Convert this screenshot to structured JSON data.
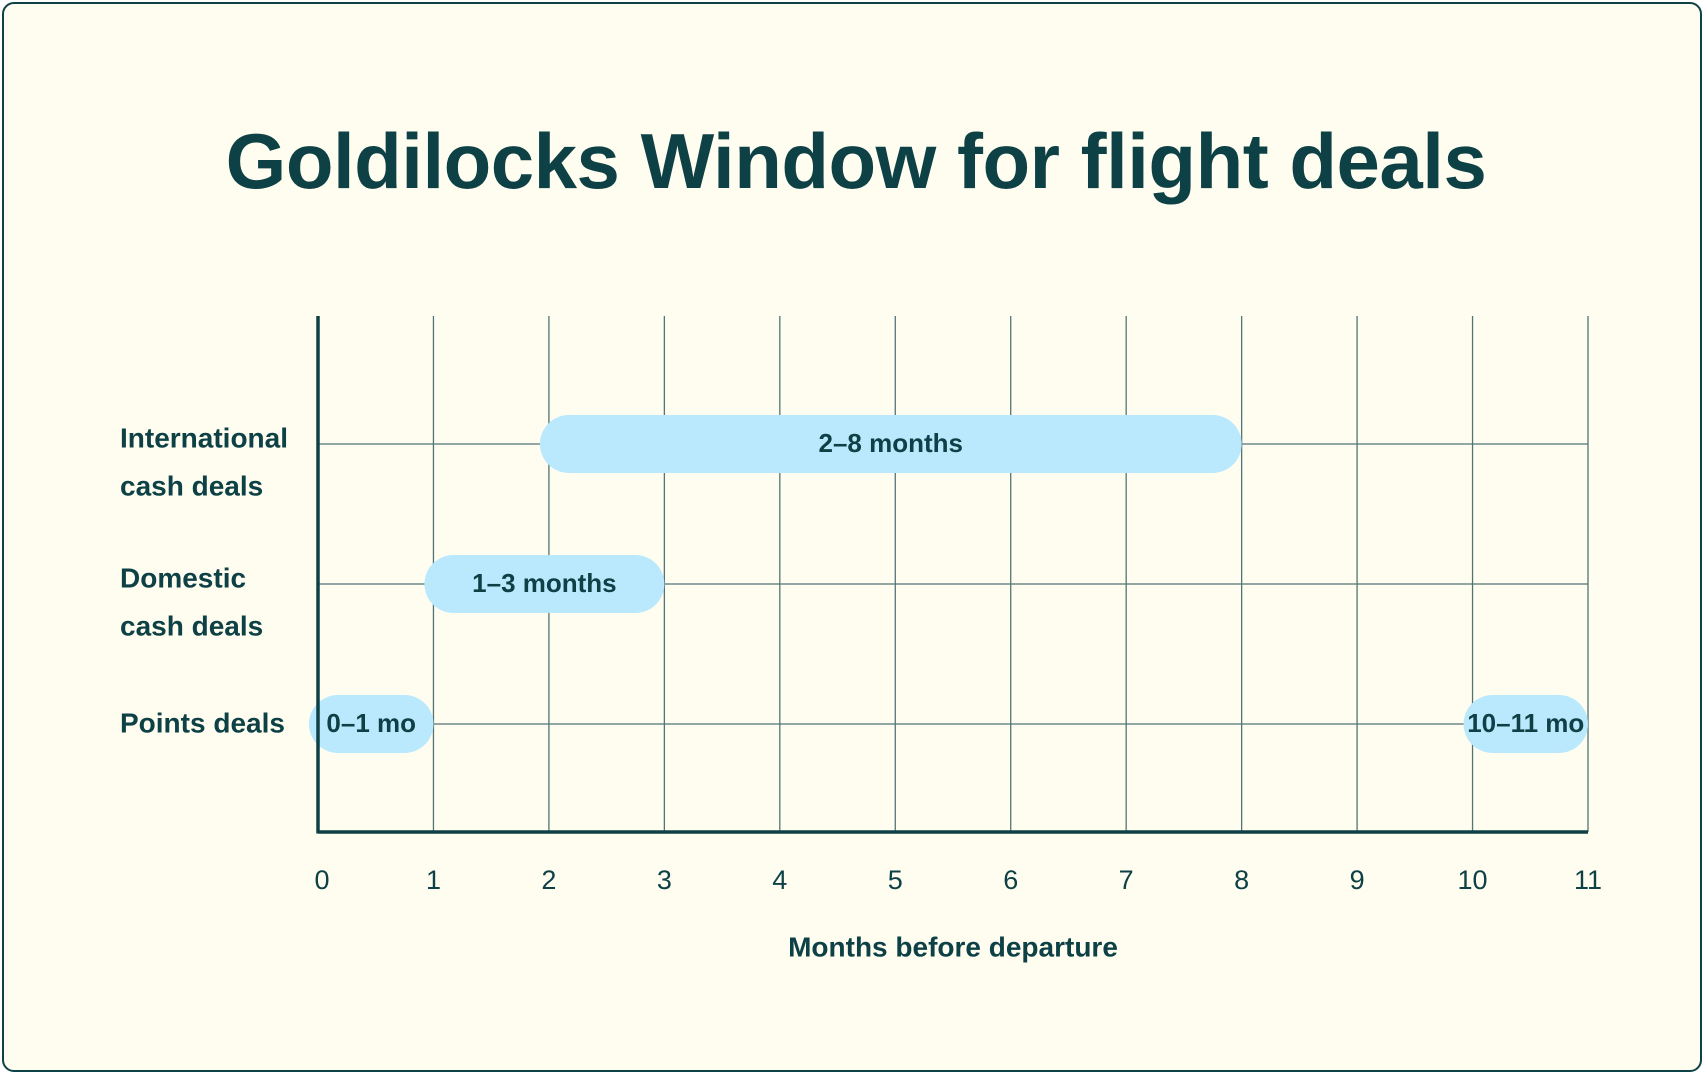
{
  "colors": {
    "background": "#fefdf0",
    "text": "#0e4146",
    "bar": "#bae9fd",
    "grid": "#527476"
  },
  "chart_data": {
    "type": "bar",
    "orientation": "horizontal-range",
    "title": "Goldilocks Window for flight deals",
    "xlabel": "Months before departure",
    "ylabel": "",
    "xlim": [
      0,
      11
    ],
    "xticks": [
      "0",
      "1",
      "2",
      "3",
      "4",
      "5",
      "6",
      "7",
      "8",
      "9",
      "10",
      "11"
    ],
    "grid": true,
    "rows": [
      {
        "label_lines": [
          "International",
          "cash deals"
        ],
        "ranges": [
          {
            "start": 2,
            "end": 8,
            "label": "2–8 months"
          }
        ]
      },
      {
        "label_lines": [
          "Domestic",
          "cash deals"
        ],
        "ranges": [
          {
            "start": 1,
            "end": 3,
            "label": "1–3 months"
          }
        ]
      },
      {
        "label_lines": [
          "Points deals"
        ],
        "ranges": [
          {
            "start": 0,
            "end": 1,
            "label": "0–1 mo"
          },
          {
            "start": 10,
            "end": 11,
            "label": "10–11 mo"
          }
        ]
      }
    ]
  }
}
